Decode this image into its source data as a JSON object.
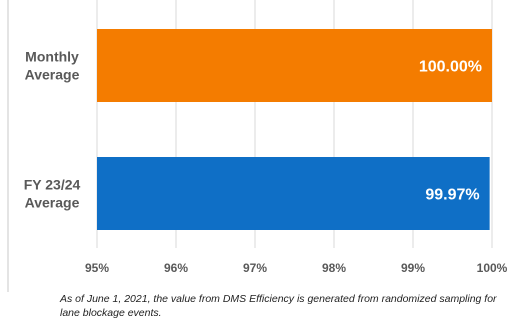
{
  "chart_data": {
    "type": "bar",
    "orientation": "horizontal",
    "categories": [
      "Monthly Average",
      "FY 23/24 Average"
    ],
    "category_lines": [
      [
        "Monthly",
        "Average"
      ],
      [
        "FY 23/24",
        "Average"
      ]
    ],
    "values": [
      100.0,
      99.97
    ],
    "value_labels": [
      "100.00%",
      "99.97%"
    ],
    "bar_colors": [
      "#F47C00",
      "#0F6FC6"
    ],
    "xlim": [
      95,
      100
    ],
    "x_ticks": [
      95,
      96,
      97,
      98,
      99,
      100
    ],
    "x_tick_labels": [
      "95%",
      "96%",
      "97%",
      "98%",
      "99%",
      "100%"
    ],
    "grid": "vertical",
    "title": "",
    "xlabel": "",
    "ylabel": ""
  },
  "footnote": "As of June 1, 2021, the value from DMS Efficiency is generated from randomized sampling for lane blockage events.",
  "colors": {
    "grid": "#d9d9d9",
    "category_text": "#595959",
    "tick_text": "#595959",
    "value_label_text": "#ffffff",
    "left_border": "#c8c8c8"
  }
}
